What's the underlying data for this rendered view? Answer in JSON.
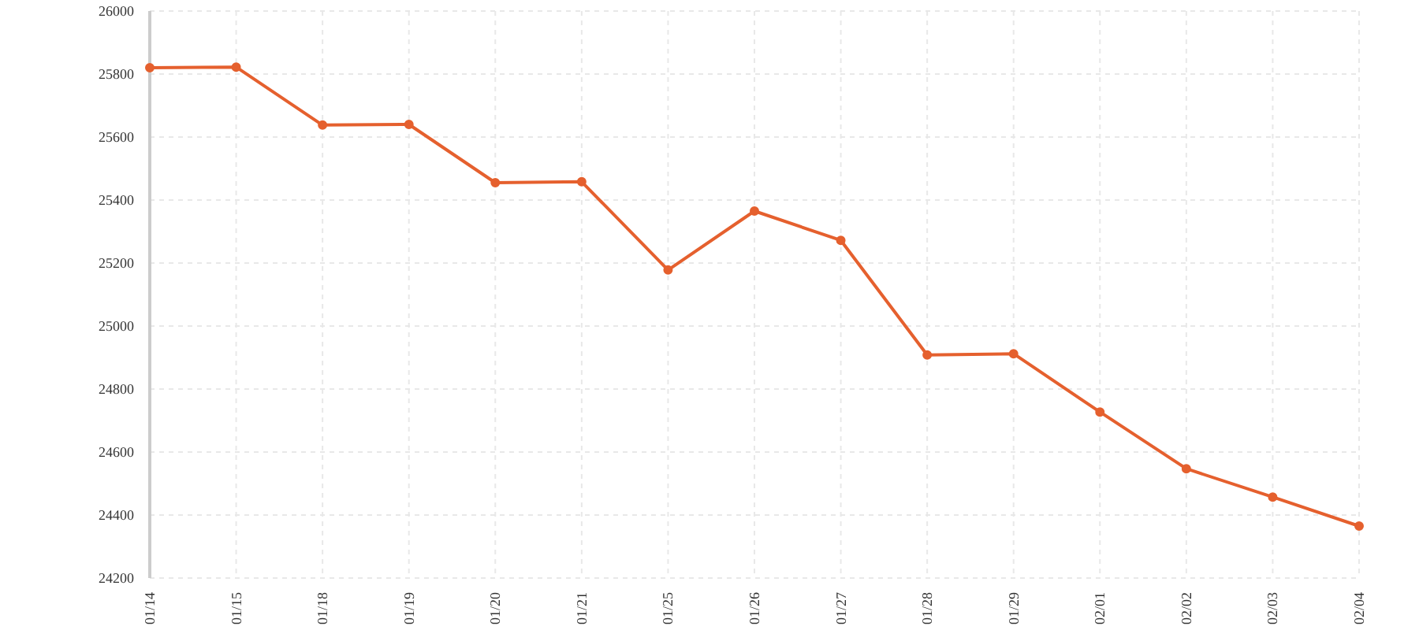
{
  "chart_data": {
    "type": "line",
    "categories": [
      "01/14",
      "01/15",
      "01/18",
      "01/19",
      "01/20",
      "01/21",
      "01/25",
      "01/26",
      "01/27",
      "01/28",
      "01/29",
      "02/01",
      "02/02",
      "02/03",
      "02/04"
    ],
    "series": [
      {
        "color": "#e5602e",
        "values": [
          25820,
          25822,
          25638,
          25640,
          25455,
          25458,
          25178,
          25365,
          25272,
          24908,
          24912,
          24727,
          24547,
          24457,
          24365
        ]
      }
    ],
    "ylim": [
      24200,
      26000
    ],
    "yticks": [
      24200,
      24400,
      24600,
      24800,
      25000,
      25200,
      25400,
      25600,
      25800,
      26000
    ],
    "grid": true,
    "marker": "circle",
    "line_style": "solid"
  }
}
